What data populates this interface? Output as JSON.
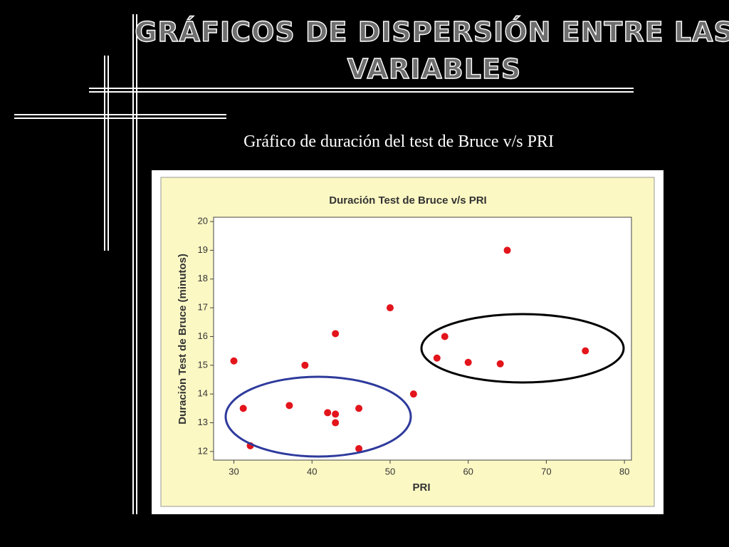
{
  "slide": {
    "title_lines": [
      "GRÁFICOS DE DISPERSIÓN ENTRE LAS",
      "VARIABLES"
    ],
    "subtitle": "Gráfico de duración del test de Bruce v/s PRI"
  },
  "chart_data": {
    "type": "scatter",
    "title": "Duración Test de Bruce v/s PRI",
    "x_label": "PRI",
    "y_label": "Duración Test de Bruce (minutos)",
    "color": "#e3141b",
    "x": [
      30,
      31.2,
      32.1,
      37.1,
      39.1,
      42,
      43,
      43,
      43,
      46,
      46,
      50,
      53,
      56,
      57,
      60,
      64.1,
      65,
      75
    ],
    "values": [
      15.15,
      13.5,
      12.2,
      13.6,
      15,
      13.35,
      16.1,
      13.3,
      13,
      13.5,
      12.1,
      17,
      14,
      15.25,
      16,
      15.1,
      15.05,
      19,
      15.5
    ],
    "xlim": [
      27.4,
      80.9
    ],
    "ylim": [
      11.7,
      20.15
    ],
    "xticks": [
      30,
      40,
      50,
      60,
      70,
      80
    ],
    "yticks": [
      12,
      13,
      14,
      15,
      16,
      17,
      18,
      19,
      20
    ]
  }
}
